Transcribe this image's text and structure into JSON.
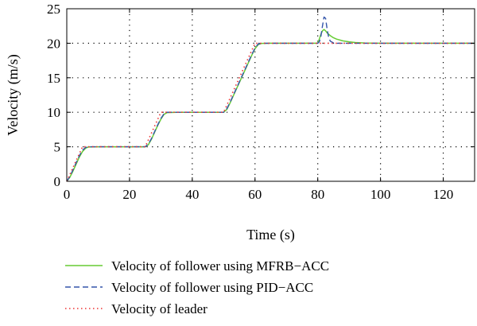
{
  "chart_data": {
    "type": "line",
    "xlabel": "Time (s)",
    "ylabel": "Velocity (m/s)",
    "xlim": [
      0,
      130
    ],
    "ylim": [
      0,
      25
    ],
    "xticks": [
      0,
      20,
      40,
      60,
      80,
      100,
      120
    ],
    "yticks": [
      0,
      5,
      10,
      15,
      20,
      25
    ],
    "grid": true,
    "legend_position": "bottom",
    "series": [
      {
        "name": "Velocity of follower using MFRB−ACC",
        "color": "#66cc33",
        "style": "solid",
        "x": [
          0,
          1,
          2,
          3,
          4,
          5,
          6,
          7,
          10,
          25,
          26,
          27,
          28,
          29,
          30,
          31,
          32,
          35,
          50,
          51,
          52,
          53,
          54,
          55,
          56,
          57,
          58,
          59,
          60,
          61,
          62,
          65,
          80,
          80.5,
          81,
          81.5,
          82,
          82.5,
          83,
          84,
          85,
          86,
          88,
          90,
          92,
          95,
          100,
          130
        ],
        "y": [
          0,
          0.6,
          1.5,
          2.5,
          3.5,
          4.3,
          4.8,
          4.97,
          5,
          5,
          5.3,
          6.1,
          7.1,
          8.1,
          9.0,
          9.7,
          9.95,
          10,
          10,
          10.4,
          11.3,
          12.3,
          13.3,
          14.3,
          15.3,
          16.3,
          17.3,
          18.3,
          19.2,
          19.8,
          19.97,
          20,
          20,
          20.6,
          21.3,
          21.8,
          22.0,
          21.8,
          21.5,
          21.1,
          20.8,
          20.6,
          20.35,
          20.2,
          20.1,
          20.03,
          20,
          20
        ]
      },
      {
        "name": "Velocity of follower using PID−ACC",
        "color": "#3355aa",
        "style": "dashed",
        "x": [
          0,
          1,
          2,
          3,
          4,
          5,
          6,
          7,
          10,
          25,
          26,
          27,
          28,
          29,
          30,
          31,
          32,
          35,
          50,
          51,
          52,
          53,
          54,
          55,
          56,
          57,
          58,
          59,
          60,
          61,
          62,
          65,
          80,
          80.5,
          81,
          81.5,
          82,
          82.5,
          83,
          83.5,
          84,
          85,
          86,
          88,
          92,
          100,
          130
        ],
        "y": [
          0,
          0.7,
          1.7,
          2.7,
          3.7,
          4.5,
          4.9,
          5.0,
          5,
          5,
          5.4,
          6.2,
          7.2,
          8.2,
          9.1,
          9.8,
          10.0,
          10,
          10,
          10.5,
          11.4,
          12.4,
          13.4,
          14.4,
          15.4,
          16.4,
          17.4,
          18.4,
          19.3,
          19.9,
          20.0,
          20,
          20,
          20.2,
          21.0,
          22.5,
          23.8,
          23.6,
          22.0,
          20.8,
          20.3,
          20.05,
          20.0,
          20,
          20,
          20,
          20
        ]
      },
      {
        "name": "Velocity of leader",
        "color": "#ee3333",
        "style": "dotted",
        "x": [
          0,
          5,
          25,
          30,
          50,
          60,
          130
        ],
        "y": [
          0,
          5,
          5,
          10,
          10,
          20,
          20
        ]
      }
    ]
  }
}
